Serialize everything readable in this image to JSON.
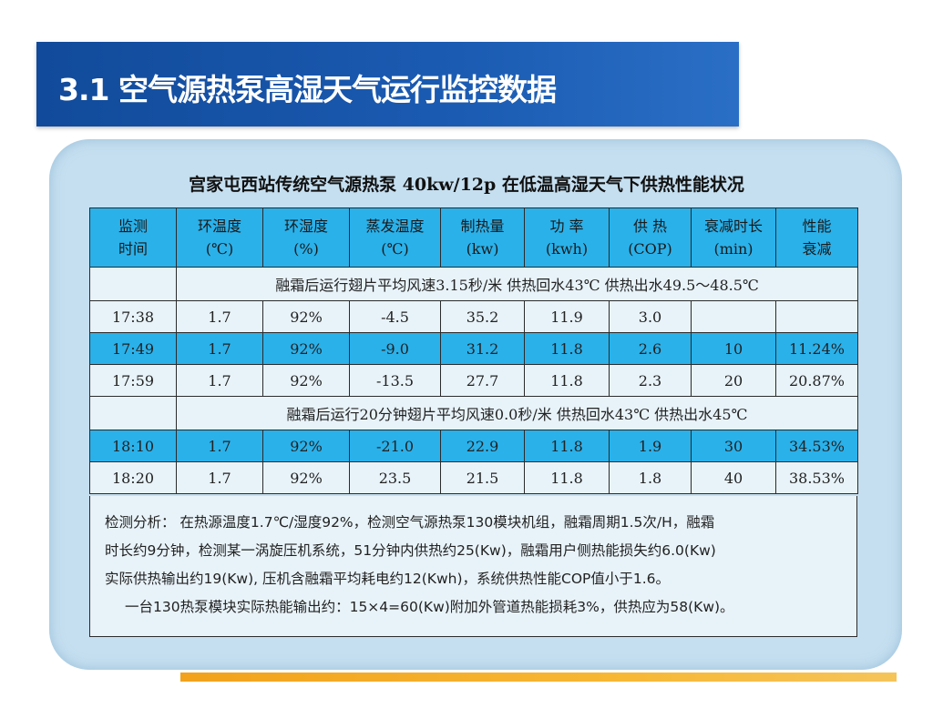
{
  "slide": {
    "title": "3.1 空气源热泵高湿天气运行监控数据"
  },
  "table": {
    "title": "宫家屯西站传统空气源热泵 40kw/12p 在低温高湿天气下供热性能状况",
    "headers": [
      [
        "监测",
        "时间"
      ],
      [
        "环温度",
        "(℃)"
      ],
      [
        "环湿度",
        "(%)"
      ],
      [
        "蒸发温度",
        "(℃)"
      ],
      [
        "制热量",
        "(kw)"
      ],
      [
        "功  率",
        "(kwh)"
      ],
      [
        "供  热",
        "(COP)"
      ],
      [
        "衰减时长",
        "(min)"
      ],
      [
        "性能",
        "衰减"
      ]
    ],
    "note1": "融霜后运行翅片平均风速3.15秒/米  供热回水43℃  供热出水49.5～48.5℃",
    "rows1": [
      [
        "17:38",
        "1.7",
        "92%",
        "-4.5",
        "35.2",
        "11.9",
        "3.0",
        "",
        ""
      ],
      [
        "17:49",
        "1.7",
        "92%",
        "-9.0",
        "31.2",
        "11.8",
        "2.6",
        "10",
        "11.24%"
      ],
      [
        "17:59",
        "1.7",
        "92%",
        "-13.5",
        "27.7",
        "11.8",
        "2.3",
        "20",
        "20.87%"
      ]
    ],
    "note2": "融霜后运行20分钟翅片平均风速0.0秒/米  供热回水43℃  供热出水45℃",
    "rows2": [
      [
        "18:10",
        "1.7",
        "92%",
        "-21.0",
        "22.9",
        "11.8",
        "1.9",
        "30",
        "34.53%"
      ],
      [
        "18:20",
        "1.7",
        "92%",
        "23.5",
        "21.5",
        "11.8",
        "1.8",
        "40",
        "38.53%"
      ]
    ]
  },
  "analysis": {
    "line1": "检测分析：  在热源温度1.7℃/湿度92%，检测空气源热泵130模块机组，融霜周期1.5次/H，融霜",
    "line2": "时长约9分钟，检测某一涡旋压机系统，51分钟内供热约25(Kw)，融霜用户侧热能损失约6.0(Kw)",
    "line3": "实际供热输出约19(Kw), 压机含融霜平均耗电约12(Kwh)，系统供热性能COP值小于1.6。",
    "line4": "一台130热泵模块实际热能输出约：15×4=60(Kw)附加外管道热能损耗3%，供热应为58(Kw)。"
  },
  "colors": {
    "title_bar": "#1b5bb2",
    "header_blue": "#2ab1ea",
    "panel_bg": "#c5dff0",
    "row_light": "#e8f3f9",
    "accent_orange": "#f2a21c"
  }
}
